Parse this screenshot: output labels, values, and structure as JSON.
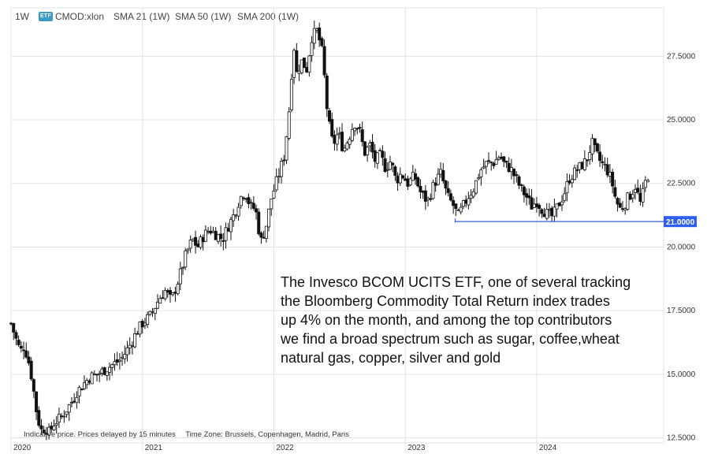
{
  "header": {
    "interval": "1W",
    "badge": "ETF",
    "symbol": "CMOD:xlon",
    "sma21": "SMA 21 (1W)",
    "sma50": "SMA 50 (1W)",
    "sma200": "SMA 200 (1W)"
  },
  "annotation": {
    "lines": [
      "The Invesco BCOM UCITS ETF, one of several tracking",
      "the Bloomberg Commodity Total Return index trades",
      "up 4% on the month, and among the top contributors",
      "we find a broad spectrum such as sugar, coffee,wheat",
      "natural gas, copper, silver and gold"
    ]
  },
  "footnote": {
    "delay": "Indicative price. Prices delayed by 15 minutes",
    "timezone": "Time Zone: Brussels, Copenhagen, Madrid, Paris"
  },
  "colors": {
    "candle": "#111111",
    "grid": "#e3e3e3",
    "support_line": "#2f5ff0",
    "support_label_bg": "#2f5ff0"
  },
  "chart_data": {
    "type": "candlestick",
    "x_ticks": [
      "2020",
      "2021",
      "2022",
      "2023",
      "2024"
    ],
    "y_ticks": [
      "27.5000",
      "25.0000",
      "22.5000",
      "20.0000",
      "17.5000",
      "15.0000",
      "12.5000"
    ],
    "y_tick_values": [
      27.5,
      25.0,
      22.5,
      20.0,
      17.5,
      15.0,
      12.5
    ],
    "ylim": [
      12.3,
      29.4
    ],
    "xlim": [
      2020.0,
      2024.93
    ],
    "support_level": {
      "value": 21.0,
      "label": "21.0000",
      "from": "2023-05",
      "to": "end"
    },
    "anchors": [
      [
        2020.0,
        17.0
      ],
      [
        2020.03,
        16.5
      ],
      [
        2020.07,
        15.9
      ],
      [
        2020.1,
        16.1
      ],
      [
        2020.13,
        15.6
      ],
      [
        2020.16,
        14.8
      ],
      [
        2020.2,
        13.3
      ],
      [
        2020.23,
        12.8
      ],
      [
        2020.26,
        12.9
      ],
      [
        2020.29,
        12.7
      ],
      [
        2020.33,
        13.1
      ],
      [
        2020.38,
        13.3
      ],
      [
        2020.42,
        13.6
      ],
      [
        2020.46,
        13.9
      ],
      [
        2020.5,
        14.3
      ],
      [
        2020.55,
        14.6
      ],
      [
        2020.6,
        14.9
      ],
      [
        2020.66,
        15.0
      ],
      [
        2020.72,
        15.2
      ],
      [
        2020.78,
        15.4
      ],
      [
        2020.84,
        15.6
      ],
      [
        2020.9,
        16.1
      ],
      [
        2020.96,
        16.7
      ],
      [
        2021.0,
        17.0
      ],
      [
        2021.06,
        17.3
      ],
      [
        2021.12,
        17.9
      ],
      [
        2021.17,
        18.3
      ],
      [
        2021.22,
        17.9
      ],
      [
        2021.28,
        18.8
      ],
      [
        2021.33,
        19.7
      ],
      [
        2021.38,
        20.3
      ],
      [
        2021.42,
        20.0
      ],
      [
        2021.46,
        20.4
      ],
      [
        2021.51,
        20.7
      ],
      [
        2021.56,
        20.5
      ],
      [
        2021.61,
        20.3
      ],
      [
        2021.65,
        20.8
      ],
      [
        2021.7,
        21.3
      ],
      [
        2021.74,
        21.9
      ],
      [
        2021.78,
        22.2
      ],
      [
        2021.82,
        21.6
      ],
      [
        2021.86,
        21.5
      ],
      [
        2021.9,
        20.2
      ],
      [
        2021.94,
        20.8
      ],
      [
        2021.98,
        21.9
      ],
      [
        2022.04,
        22.9
      ],
      [
        2022.08,
        23.6
      ],
      [
        2022.12,
        25.6
      ],
      [
        2022.15,
        28.1
      ],
      [
        2022.17,
        26.8
      ],
      [
        2022.21,
        27.3
      ],
      [
        2022.25,
        27.0
      ],
      [
        2022.29,
        28.3
      ],
      [
        2022.33,
        28.5
      ],
      [
        2022.37,
        27.6
      ],
      [
        2022.41,
        25.1
      ],
      [
        2022.45,
        24.0
      ],
      [
        2022.49,
        24.5
      ],
      [
        2022.53,
        23.8
      ],
      [
        2022.57,
        24.3
      ],
      [
        2022.61,
        24.9
      ],
      [
        2022.65,
        24.6
      ],
      [
        2022.69,
        23.7
      ],
      [
        2022.73,
        24.0
      ],
      [
        2022.77,
        23.4
      ],
      [
        2022.81,
        23.6
      ],
      [
        2022.85,
        23.1
      ],
      [
        2022.89,
        23.4
      ],
      [
        2022.93,
        22.6
      ],
      [
        2022.97,
        22.9
      ],
      [
        2023.02,
        22.5
      ],
      [
        2023.07,
        22.8
      ],
      [
        2023.12,
        22.1
      ],
      [
        2023.17,
        21.8
      ],
      [
        2023.22,
        22.5
      ],
      [
        2023.27,
        22.9
      ],
      [
        2023.32,
        22.0
      ],
      [
        2023.37,
        21.6
      ],
      [
        2023.4,
        21.2
      ],
      [
        2023.44,
        21.6
      ],
      [
        2023.48,
        22.0
      ],
      [
        2023.52,
        22.3
      ],
      [
        2023.57,
        23.0
      ],
      [
        2023.62,
        23.3
      ],
      [
        2023.67,
        23.3
      ],
      [
        2023.72,
        23.6
      ],
      [
        2023.76,
        23.2
      ],
      [
        2023.8,
        23.1
      ],
      [
        2023.84,
        22.7
      ],
      [
        2023.88,
        22.3
      ],
      [
        2023.92,
        22.0
      ],
      [
        2023.96,
        21.6
      ],
      [
        2024.0,
        21.8
      ],
      [
        2024.04,
        21.5
      ],
      [
        2024.08,
        21.3
      ],
      [
        2024.12,
        21.2
      ],
      [
        2024.16,
        21.6
      ],
      [
        2024.2,
        22.0
      ],
      [
        2024.25,
        22.7
      ],
      [
        2024.3,
        23.0
      ],
      [
        2024.34,
        23.2
      ],
      [
        2024.38,
        23.4
      ],
      [
        2024.42,
        24.1
      ],
      [
        2024.45,
        23.7
      ],
      [
        2024.49,
        23.3
      ],
      [
        2024.53,
        23.1
      ],
      [
        2024.57,
        22.6
      ],
      [
        2024.6,
        21.9
      ],
      [
        2024.63,
        21.5
      ],
      [
        2024.66,
        21.6
      ],
      [
        2024.69,
        21.9
      ],
      [
        2024.72,
        22.1
      ],
      [
        2024.75,
        22.4
      ],
      [
        2024.79,
        21.7
      ],
      [
        2024.83,
        22.6
      ],
      [
        2024.86,
        23.0
      ]
    ]
  }
}
